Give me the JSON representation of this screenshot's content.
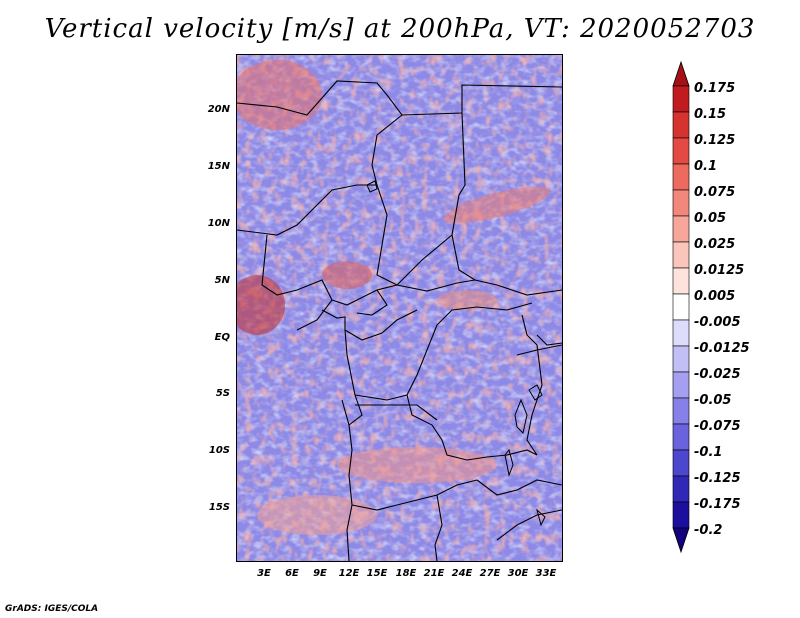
{
  "title": "Vertical velocity [m/s] at 200hPa, VT: 2020052703",
  "footer": "GrADS: IGES/COLA",
  "y_axis": [
    "20N",
    "15N",
    "10N",
    "5N",
    "EQ",
    "5S",
    "10S",
    "15S"
  ],
  "x_axis": [
    "3E",
    "6E",
    "9E",
    "12E",
    "15E",
    "18E",
    "21E",
    "24E",
    "27E",
    "30E",
    "33E"
  ],
  "colorbar": {
    "labels": [
      "0.175",
      "0.15",
      "0.125",
      "0.1",
      "0.075",
      "0.05",
      "0.025",
      "0.0125",
      "0.005",
      "-0.005",
      "-0.0125",
      "-0.025",
      "-0.05",
      "-0.075",
      "-0.1",
      "-0.125",
      "-0.175",
      "-0.2"
    ],
    "colors": [
      "#a50f15",
      "#c21b1f",
      "#d6332f",
      "#e34a43",
      "#ec6a5e",
      "#f2887b",
      "#f7a79a",
      "#fac6bb",
      "#fde3dc",
      "#ffffff",
      "#dedcfb",
      "#c2bff6",
      "#a49ff0",
      "#8680e8",
      "#6a63dd",
      "#4d46ce",
      "#3128b8",
      "#1c0f9e",
      "#12007e"
    ]
  },
  "legend_colors": {
    "top_arrow": "#a50f15",
    "bottom_arrow": "#12007e"
  }
}
